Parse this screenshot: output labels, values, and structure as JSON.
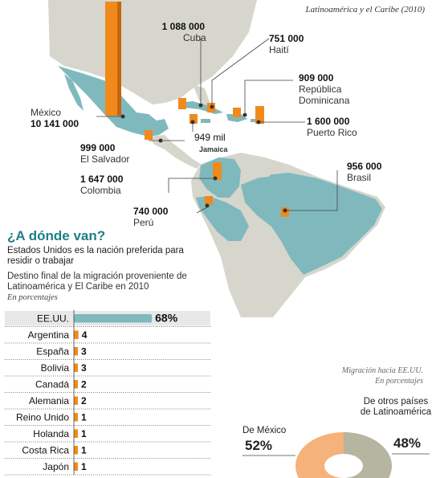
{
  "subtitle": "Latinoamérica y el Caribe (2010)",
  "map_labels": [
    {
      "id": "cuba",
      "value": "1 088 000",
      "name": "Cuba"
    },
    {
      "id": "haiti",
      "value": "751 000",
      "name": "Haití"
    },
    {
      "id": "rep-dominicana",
      "value": "909 000",
      "name": "República Dominicana"
    },
    {
      "id": "mexico",
      "value": "10 141 000",
      "name": "México"
    },
    {
      "id": "puerto-rico",
      "value": "1 600 000",
      "name": "Puerto Rico"
    },
    {
      "id": "jamaica",
      "value": "949 mil",
      "name": "Jamaica"
    },
    {
      "id": "el-salvador",
      "value": "999 000",
      "name": "El Salvador"
    },
    {
      "id": "colombia",
      "value": "1 647 000",
      "name": "Colombia"
    },
    {
      "id": "brasil",
      "value": "956 000",
      "name": "Brasil"
    },
    {
      "id": "peru",
      "value": "740 000",
      "name": "Perú"
    }
  ],
  "section": {
    "title": "¿A dónde van?",
    "subtitle": "Estados Unidos es la nación preferida para residir o trabajar",
    "description": "Destino final de la migración proveniente de Latinoamérica y El Caribe en 2010",
    "units": "En porcentajes"
  },
  "pie_note": {
    "line1": "Migración hacia EE.UU.",
    "line2": "En porcentajes"
  },
  "colors": {
    "teal": "#7fb9be",
    "orange": "#f08a1c",
    "pie_orange": "#f5b27a",
    "pie_gray": "#b5b5a0",
    "title": "#1e7f86"
  },
  "chart_data": [
    {
      "type": "bar",
      "categories": [
        "EE.UU.",
        "Argentina",
        "España",
        "Bolivia",
        "Canadá",
        "Alemania",
        "Reino Unido",
        "Holanda",
        "Costa Rica",
        "Japón"
      ],
      "values": [
        68,
        4,
        3,
        3,
        2,
        2,
        1,
        1,
        1,
        1
      ],
      "value_labels": [
        "68%",
        "4",
        "3",
        "3",
        "2",
        "2",
        "1",
        "1",
        "1",
        "1"
      ],
      "title": "¿A dónde van?",
      "xlabel": "",
      "ylabel": ""
    },
    {
      "type": "pie",
      "title": "Migración hacia EE.UU.",
      "categories": [
        "De México",
        "De otros países de Latinoamérica"
      ],
      "values": [
        52,
        48
      ],
      "value_labels": [
        "52%",
        "48%"
      ]
    }
  ]
}
